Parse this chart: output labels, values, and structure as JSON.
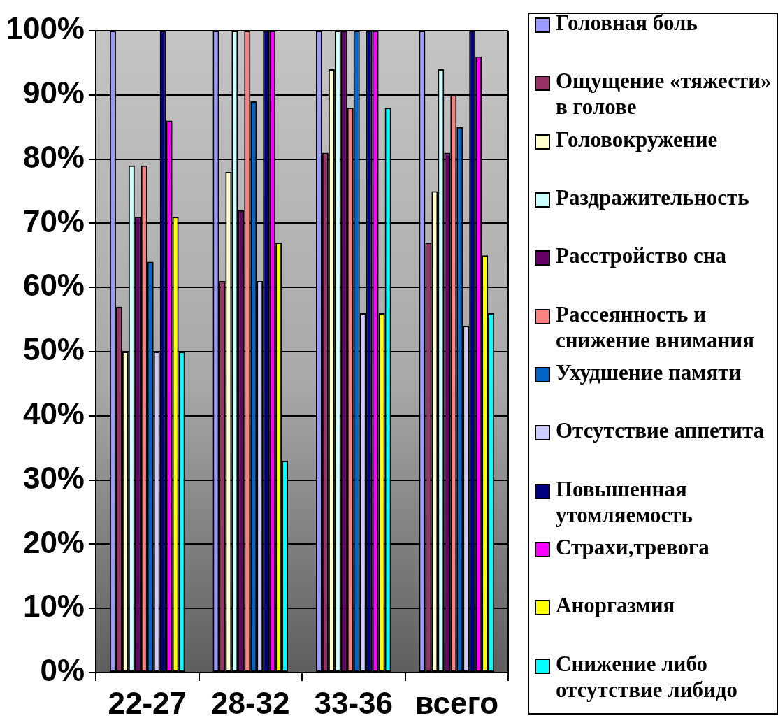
{
  "chart_data": {
    "type": "bar",
    "categories": [
      "22-27",
      "28-32",
      "33-36",
      "всего"
    ],
    "series": [
      {
        "name": "Головная боль",
        "color": "#9999ff",
        "values": [
          100,
          100,
          100,
          100
        ]
      },
      {
        "name": "Ощущение «тяжести» в голове",
        "color": "#993366",
        "values": [
          57,
          61,
          81,
          67
        ]
      },
      {
        "name": "Головокружение",
        "color": "#ffffcc",
        "values": [
          50,
          78,
          94,
          75
        ]
      },
      {
        "name": "Раздражительность",
        "color": "#ccffff",
        "values": [
          79,
          100,
          100,
          94
        ]
      },
      {
        "name": "Расстройство сна",
        "color": "#660066",
        "values": [
          71,
          72,
          100,
          81
        ]
      },
      {
        "name": "Рассеянность и снижение внимания",
        "color": "#ff8080",
        "values": [
          79,
          100,
          88,
          90
        ]
      },
      {
        "name": "Ухудшение памяти",
        "color": "#0066cc",
        "values": [
          64,
          89,
          100,
          85
        ]
      },
      {
        "name": "Отсутствие аппетита",
        "color": "#ccccff",
        "values": [
          50,
          61,
          56,
          54
        ]
      },
      {
        "name": "Повышенная утомляемость",
        "color": "#000080",
        "values": [
          100,
          100,
          100,
          100
        ]
      },
      {
        "name": "Страхи,тревога",
        "color": "#ff00ff",
        "values": [
          86,
          100,
          100,
          96
        ]
      },
      {
        "name": "Аноргазмия",
        "color": "#ffff00",
        "values": [
          71,
          67,
          56,
          65
        ]
      },
      {
        "name": "Снижение либо отсутствие либидо",
        "color": "#00ffff",
        "values": [
          50,
          33,
          88,
          56
        ]
      }
    ],
    "ylim": [
      0,
      100
    ],
    "yticks": [
      {
        "value": 0,
        "label": "0%"
      },
      {
        "value": 10,
        "label": "10%"
      },
      {
        "value": 20,
        "label": "20%"
      },
      {
        "value": 30,
        "label": "30%"
      },
      {
        "value": 40,
        "label": "40%"
      },
      {
        "value": 50,
        "label": "50%"
      },
      {
        "value": 60,
        "label": "60%"
      },
      {
        "value": 70,
        "label": "70%"
      },
      {
        "value": 80,
        "label": "80%"
      },
      {
        "value": 90,
        "label": "90%"
      },
      {
        "value": 100,
        "label": "100%"
      }
    ],
    "grid": "y",
    "legend": "right"
  }
}
